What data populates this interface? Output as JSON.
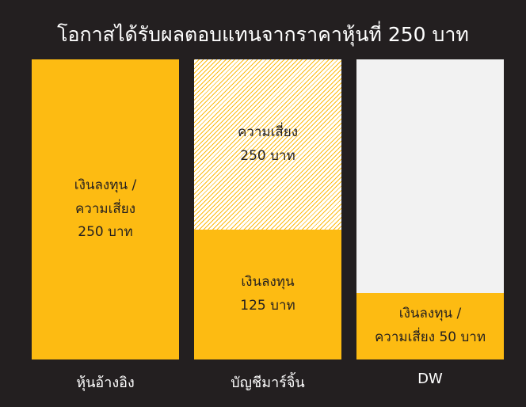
{
  "header": {
    "title": "โอกาสได้รับผลตอบแทนจากราคาหุ้นที่ 250 บาท"
  },
  "columns": [
    {
      "label": "หุ้นอ้างอิง",
      "segments": [
        {
          "lines": [
            "เงินลงทุน /",
            "ความเสี่ยง",
            "250 บาท"
          ]
        }
      ]
    },
    {
      "label": "บัญชีมาร์จิ้น",
      "segments": [
        {
          "lines": [
            "ความเสี่ยง",
            "250 บาท"
          ]
        },
        {
          "lines": [
            "เงินลงทุน",
            "125 บาท"
          ]
        }
      ]
    },
    {
      "label": "DW",
      "segments": [
        {
          "lines": [
            "เงินลงทุน /",
            "ความเสี่ยง 50 บาท"
          ]
        }
      ]
    }
  ]
}
